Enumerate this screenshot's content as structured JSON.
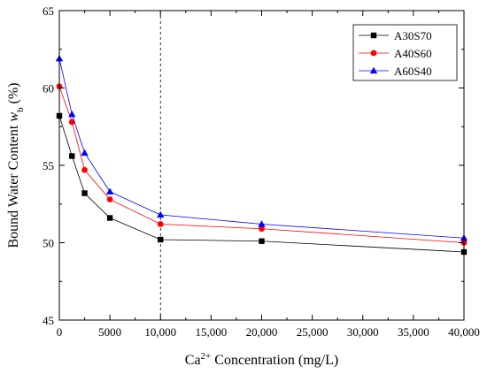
{
  "chart_data": {
    "type": "line",
    "xlabel": {
      "base": "Ca",
      "sup": "2+",
      "rest": " Concentration (mg/L)"
    },
    "ylabel": {
      "prefix": "Bound Water Content ",
      "var": "w",
      "sub": "b",
      "suffix": " (%)"
    },
    "xlim": [
      0,
      40000
    ],
    "ylim": [
      45,
      65
    ],
    "xticks": [
      0,
      5000,
      10000,
      15000,
      20000,
      25000,
      30000,
      35000,
      40000
    ],
    "xtick_labels": [
      "0",
      "5000",
      "10,000",
      "15,000",
      "20,000",
      "25,000",
      "30,000",
      "35,000",
      "40,000"
    ],
    "yticks": [
      45,
      50,
      55,
      60,
      65
    ],
    "ytick_labels": [
      "45",
      "50",
      "55",
      "60",
      "65"
    ],
    "vline": 10000,
    "legend_position": "top-right",
    "grid": false,
    "series": [
      {
        "name": "A30S70",
        "color": "#000000",
        "marker": "square",
        "x": [
          0,
          1250,
          2500,
          5000,
          10000,
          20000,
          40000
        ],
        "y": [
          58.2,
          55.6,
          53.2,
          51.6,
          50.2,
          50.1,
          49.4
        ]
      },
      {
        "name": "A40S60",
        "color": "#ff0000",
        "marker": "circle",
        "x": [
          0,
          1250,
          2500,
          5000,
          10000,
          20000,
          40000
        ],
        "y": [
          60.1,
          57.8,
          54.7,
          52.8,
          51.2,
          50.9,
          50.0
        ]
      },
      {
        "name": "A60S40",
        "color": "#0000ff",
        "marker": "triangle",
        "x": [
          0,
          1250,
          2500,
          5000,
          10000,
          20000,
          40000
        ],
        "y": [
          61.9,
          58.3,
          55.8,
          53.3,
          51.8,
          51.2,
          50.3
        ]
      }
    ]
  }
}
